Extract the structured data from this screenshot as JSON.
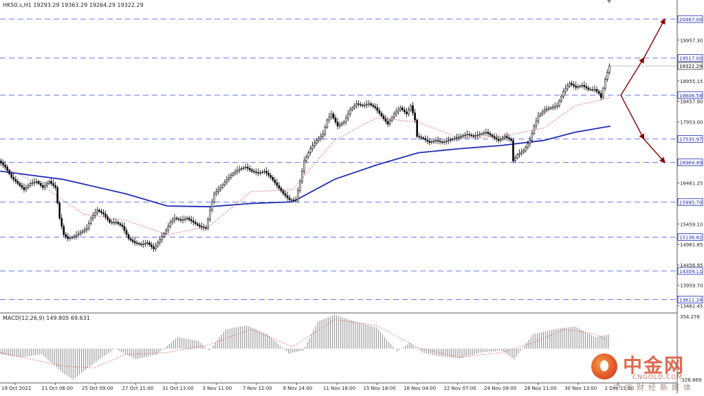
{
  "chart_data": [
    {
      "type": "candlestick",
      "symbol_header": "HK50.s,H1  19293.29 19363.29 19264.29 19322.29",
      "last_price": "19322.29",
      "y_tick_labels": [
        "19957.30",
        "18955.15",
        "18457.90",
        "17953.00",
        "16461.25",
        "15459.10",
        "14961.85",
        "14456.95",
        "13959.70",
        "13462.45"
      ],
      "y_tick_values": [
        19957.3,
        18955.15,
        18457.9,
        17953.0,
        16461.25,
        15459.1,
        14961.85,
        14456.95,
        13959.7,
        13462.45
      ],
      "ylim": [
        13300,
        20700
      ],
      "x_tick_labels": [
        "19 Oct 2022",
        "21 Oct 06:00",
        "25 Oct 09:00",
        "27 Oct 11:00",
        "31 Oct 13:00",
        "3 Nov 11:00",
        "7 Nov 12:00",
        "9 Nov 14:00",
        "11 Nov 16:00",
        "15 Nov 18:00",
        "18 Nov 04:00",
        "22 Nov 07:00",
        "24 Nov 09:00",
        "28 Nov 11:00",
        "30 Nov 13:00",
        "2 Dec 15:00"
      ],
      "levels": [
        {
          "label": "20467.00",
          "value": 20467.0
        },
        {
          "label": "19517.00",
          "value": 19517.0
        },
        {
          "label": "18606.58",
          "value": 18606.58
        },
        {
          "label": "17535.97",
          "value": 17535.97
        },
        {
          "label": "16964.49",
          "value": 16964.49
        },
        {
          "label": "15995.70",
          "value": 15995.7
        },
        {
          "label": "15136.82",
          "value": 15136.82
        },
        {
          "label": "14309.11",
          "value": 14309.11
        },
        {
          "label": "13611.24",
          "value": 13611.24
        }
      ],
      "series": [
        {
          "name": "price",
          "points": [
            {
              "x": 0,
              "y": 17000
            },
            {
              "x": 3,
              "y": 16850
            },
            {
              "x": 6,
              "y": 16600
            },
            {
              "x": 9,
              "y": 16450
            },
            {
              "x": 12,
              "y": 16300
            },
            {
              "x": 15,
              "y": 16450
            },
            {
              "x": 18,
              "y": 16500
            },
            {
              "x": 21,
              "y": 16350
            },
            {
              "x": 24,
              "y": 16500
            },
            {
              "x": 27,
              "y": 16350
            },
            {
              "x": 29,
              "y": 15600
            },
            {
              "x": 31,
              "y": 15200
            },
            {
              "x": 33,
              "y": 15100
            },
            {
              "x": 36,
              "y": 15150
            },
            {
              "x": 39,
              "y": 15250
            },
            {
              "x": 42,
              "y": 15350
            },
            {
              "x": 44,
              "y": 15600
            },
            {
              "x": 47,
              "y": 15800
            },
            {
              "x": 50,
              "y": 15700
            },
            {
              "x": 53,
              "y": 15500
            },
            {
              "x": 56,
              "y": 15500
            },
            {
              "x": 59,
              "y": 15400
            },
            {
              "x": 62,
              "y": 15100
            },
            {
              "x": 65,
              "y": 15000
            },
            {
              "x": 68,
              "y": 14950
            },
            {
              "x": 71,
              "y": 15000
            },
            {
              "x": 74,
              "y": 14850
            },
            {
              "x": 76,
              "y": 15000
            },
            {
              "x": 78,
              "y": 15150
            },
            {
              "x": 80,
              "y": 15300
            },
            {
              "x": 82,
              "y": 15500
            },
            {
              "x": 84,
              "y": 15600
            },
            {
              "x": 87,
              "y": 15550
            },
            {
              "x": 90,
              "y": 15600
            },
            {
              "x": 93,
              "y": 15500
            },
            {
              "x": 96,
              "y": 15400
            },
            {
              "x": 99,
              "y": 15350
            },
            {
              "x": 101,
              "y": 15800
            },
            {
              "x": 103,
              "y": 16200
            },
            {
              "x": 106,
              "y": 16350
            },
            {
              "x": 109,
              "y": 16550
            },
            {
              "x": 112,
              "y": 16700
            },
            {
              "x": 115,
              "y": 16800
            },
            {
              "x": 118,
              "y": 16850
            },
            {
              "x": 121,
              "y": 16750
            },
            {
              "x": 124,
              "y": 16700
            },
            {
              "x": 127,
              "y": 16750
            },
            {
              "x": 130,
              "y": 16600
            },
            {
              "x": 133,
              "y": 16400
            },
            {
              "x": 136,
              "y": 16200
            },
            {
              "x": 139,
              "y": 16050
            },
            {
              "x": 142,
              "y": 16050
            },
            {
              "x": 144,
              "y": 16500
            },
            {
              "x": 146,
              "y": 17000
            },
            {
              "x": 149,
              "y": 17300
            },
            {
              "x": 152,
              "y": 17500
            },
            {
              "x": 155,
              "y": 17650
            },
            {
              "x": 157,
              "y": 18000
            },
            {
              "x": 159,
              "y": 18150
            },
            {
              "x": 162,
              "y": 17850
            },
            {
              "x": 165,
              "y": 17950
            },
            {
              "x": 168,
              "y": 18250
            },
            {
              "x": 171,
              "y": 18400
            },
            {
              "x": 174,
              "y": 18350
            },
            {
              "x": 177,
              "y": 18400
            },
            {
              "x": 180,
              "y": 18300
            },
            {
              "x": 183,
              "y": 18100
            },
            {
              "x": 186,
              "y": 17900
            },
            {
              "x": 189,
              "y": 18150
            },
            {
              "x": 192,
              "y": 18300
            },
            {
              "x": 195,
              "y": 18150
            },
            {
              "x": 197,
              "y": 18350
            },
            {
              "x": 199,
              "y": 18000
            },
            {
              "x": 200,
              "y": 17600
            },
            {
              "x": 203,
              "y": 17550
            },
            {
              "x": 206,
              "y": 17450
            },
            {
              "x": 209,
              "y": 17500
            },
            {
              "x": 212,
              "y": 17450
            },
            {
              "x": 215,
              "y": 17500
            },
            {
              "x": 218,
              "y": 17550
            },
            {
              "x": 221,
              "y": 17600
            },
            {
              "x": 224,
              "y": 17650
            },
            {
              "x": 227,
              "y": 17600
            },
            {
              "x": 230,
              "y": 17650
            },
            {
              "x": 233,
              "y": 17700
            },
            {
              "x": 236,
              "y": 17600
            },
            {
              "x": 239,
              "y": 17500
            },
            {
              "x": 242,
              "y": 17600
            },
            {
              "x": 245,
              "y": 17500
            },
            {
              "x": 246,
              "y": 17000
            },
            {
              "x": 248,
              "y": 17150
            },
            {
              "x": 251,
              "y": 17250
            },
            {
              "x": 254,
              "y": 17500
            },
            {
              "x": 256,
              "y": 17850
            },
            {
              "x": 258,
              "y": 18100
            },
            {
              "x": 261,
              "y": 18250
            },
            {
              "x": 264,
              "y": 18300
            },
            {
              "x": 267,
              "y": 18350
            },
            {
              "x": 270,
              "y": 18700
            },
            {
              "x": 273,
              "y": 18900
            },
            {
              "x": 276,
              "y": 18800
            },
            {
              "x": 279,
              "y": 18850
            },
            {
              "x": 282,
              "y": 18750
            },
            {
              "x": 285,
              "y": 18750
            },
            {
              "x": 287,
              "y": 18650
            },
            {
              "x": 288,
              "y": 18550
            },
            {
              "x": 290,
              "y": 19000
            },
            {
              "x": 292,
              "y": 19322
            }
          ]
        },
        {
          "name": "ma_slow",
          "points": [
            {
              "x": 0,
              "y": 16750
            },
            {
              "x": 30,
              "y": 16550
            },
            {
              "x": 60,
              "y": 16200
            },
            {
              "x": 80,
              "y": 15900
            },
            {
              "x": 100,
              "y": 15880
            },
            {
              "x": 120,
              "y": 15960
            },
            {
              "x": 140,
              "y": 16000
            },
            {
              "x": 160,
              "y": 16550
            },
            {
              "x": 180,
              "y": 16900
            },
            {
              "x": 200,
              "y": 17200
            },
            {
              "x": 220,
              "y": 17300
            },
            {
              "x": 240,
              "y": 17380
            },
            {
              "x": 260,
              "y": 17500
            },
            {
              "x": 275,
              "y": 17700
            },
            {
              "x": 292,
              "y": 17850
            }
          ]
        },
        {
          "name": "ma_fast",
          "points": [
            {
              "x": 0,
              "y": 16900
            },
            {
              "x": 20,
              "y": 16400
            },
            {
              "x": 40,
              "y": 15700
            },
            {
              "x": 60,
              "y": 15550
            },
            {
              "x": 80,
              "y": 15200
            },
            {
              "x": 100,
              "y": 15400
            },
            {
              "x": 120,
              "y": 16250
            },
            {
              "x": 140,
              "y": 16300
            },
            {
              "x": 160,
              "y": 17500
            },
            {
              "x": 180,
              "y": 18050
            },
            {
              "x": 200,
              "y": 17950
            },
            {
              "x": 220,
              "y": 17550
            },
            {
              "x": 240,
              "y": 17600
            },
            {
              "x": 260,
              "y": 17800
            },
            {
              "x": 275,
              "y": 18350
            },
            {
              "x": 292,
              "y": 18550
            }
          ]
        }
      ],
      "projections": [
        {
          "from": {
            "x": 297,
            "y": 18606
          },
          "via": {
            "x": 308,
            "y": 19517
          },
          "to": {
            "x": 318,
            "y": 20467
          }
        },
        {
          "from": {
            "x": 297,
            "y": 18606
          },
          "via": {
            "x": 308,
            "y": 17535
          },
          "to": {
            "x": 318,
            "y": 16964
          }
        }
      ],
      "colors": {
        "price": "#000000",
        "ma_slow": "#1f2bb5",
        "ma_fast": "#e06060",
        "level": "#6677ee",
        "arrow": "#8b0000",
        "label_text": "#1f2bb5",
        "text": "#222222"
      }
    },
    {
      "type": "bar",
      "title": "MACD(12,26,9) 149.805 69.631",
      "y_tick_labels": [
        "354.276",
        "-326.869"
      ],
      "series": [
        {
          "name": "macd",
          "points": [
            {
              "x": 0,
              "y": -60
            },
            {
              "x": 10,
              "y": -90
            },
            {
              "x": 20,
              "y": -60
            },
            {
              "x": 30,
              "y": -250
            },
            {
              "x": 35,
              "y": -320
            },
            {
              "x": 45,
              "y": -150
            },
            {
              "x": 55,
              "y": 0
            },
            {
              "x": 65,
              "y": -110
            },
            {
              "x": 75,
              "y": -60
            },
            {
              "x": 85,
              "y": 120
            },
            {
              "x": 95,
              "y": 80
            },
            {
              "x": 100,
              "y": -20
            },
            {
              "x": 108,
              "y": 200
            },
            {
              "x": 118,
              "y": 240
            },
            {
              "x": 128,
              "y": 150
            },
            {
              "x": 138,
              "y": -50
            },
            {
              "x": 145,
              "y": -20
            },
            {
              "x": 152,
              "y": 280
            },
            {
              "x": 160,
              "y": 350
            },
            {
              "x": 170,
              "y": 280
            },
            {
              "x": 180,
              "y": 220
            },
            {
              "x": 190,
              "y": -30
            },
            {
              "x": 196,
              "y": 60
            },
            {
              "x": 202,
              "y": -40
            },
            {
              "x": 210,
              "y": -80
            },
            {
              "x": 220,
              "y": -100
            },
            {
              "x": 230,
              "y": -40
            },
            {
              "x": 240,
              "y": -20
            },
            {
              "x": 246,
              "y": -110
            },
            {
              "x": 255,
              "y": 150
            },
            {
              "x": 265,
              "y": 200
            },
            {
              "x": 275,
              "y": 230
            },
            {
              "x": 285,
              "y": 120
            },
            {
              "x": 292,
              "y": 150
            }
          ]
        },
        {
          "name": "signal",
          "points": [
            {
              "x": 0,
              "y": -40
            },
            {
              "x": 30,
              "y": -180
            },
            {
              "x": 45,
              "y": -200
            },
            {
              "x": 60,
              "y": -60
            },
            {
              "x": 80,
              "y": -40
            },
            {
              "x": 100,
              "y": 40
            },
            {
              "x": 120,
              "y": 200
            },
            {
              "x": 140,
              "y": 20
            },
            {
              "x": 160,
              "y": 300
            },
            {
              "x": 180,
              "y": 240
            },
            {
              "x": 200,
              "y": 10
            },
            {
              "x": 220,
              "y": -90
            },
            {
              "x": 240,
              "y": -40
            },
            {
              "x": 255,
              "y": 60
            },
            {
              "x": 270,
              "y": 200
            },
            {
              "x": 285,
              "y": 150
            },
            {
              "x": 292,
              "y": 70
            }
          ]
        }
      ],
      "ylim": [
        -354.276,
        354.276
      ]
    }
  ],
  "watermark": {
    "logo_cn": "中金网",
    "logo_en": "CNGOLD.COM",
    "sub_cn": "中文财经新媒体"
  }
}
